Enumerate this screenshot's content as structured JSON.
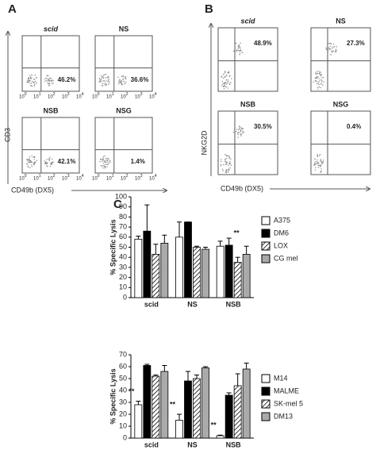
{
  "panel_labels": [
    "A",
    "B",
    "C"
  ],
  "flow_a": {
    "y_label": "CD3",
    "x_label": "CD49b (DX5)",
    "tick_base": "10",
    "tick_exponents": [
      "0",
      "1",
      "2",
      "3",
      "4"
    ],
    "plots": [
      {
        "title": "scid",
        "percent": "46.2%"
      },
      {
        "title": "NS",
        "percent": "36.6%"
      },
      {
        "title": "NSB",
        "percent": "42.1%"
      },
      {
        "title": "NSG",
        "percent": "1.4%"
      }
    ]
  },
  "flow_b": {
    "y_label": "NKG2D",
    "x_label": "CD49b (DX5)",
    "plots": [
      {
        "title": "scid",
        "percent": "48.9%"
      },
      {
        "title": "NS",
        "percent": "27.3%"
      },
      {
        "title": "NSB",
        "percent": "30.5%"
      },
      {
        "title": "NSG",
        "percent": "0.4%"
      }
    ]
  },
  "chart_data": [
    {
      "type": "bar",
      "y_label": "% Specific Lysis",
      "categories": [
        "scid",
        "NS",
        "NSB"
      ],
      "ylim": [
        0,
        100
      ],
      "yticks": [
        0,
        10,
        20,
        30,
        40,
        50,
        60,
        70,
        80,
        90,
        100
      ],
      "series": [
        {
          "name": "A375",
          "color": "#ffffff",
          "values": [
            58,
            60,
            51
          ],
          "errors": [
            3,
            15,
            5
          ]
        },
        {
          "name": "DM6",
          "color": "#000000",
          "values": [
            66,
            75,
            52
          ],
          "errors": [
            26,
            0,
            7
          ]
        },
        {
          "name": "LOX",
          "color": "#ffffff",
          "pattern": "hatch",
          "values": [
            43,
            50,
            35
          ],
          "errors": [
            10,
            1,
            5
          ]
        },
        {
          "name": "CG mel",
          "color": "#aaaaaa",
          "values": [
            54,
            48,
            43
          ],
          "errors": [
            8,
            2,
            8
          ]
        }
      ],
      "annotations": [
        "**"
      ]
    },
    {
      "type": "bar",
      "y_label": "% Specific Lysis",
      "categories": [
        "scid",
        "NS",
        "NSB"
      ],
      "ylim": [
        0,
        70
      ],
      "yticks": [
        0,
        10,
        20,
        30,
        40,
        50,
        60,
        70
      ],
      "series": [
        {
          "name": "M14",
          "color": "#ffffff",
          "values": [
            28,
            15,
            2
          ],
          "errors": [
            3,
            5,
            0.5
          ]
        },
        {
          "name": "MALME",
          "color": "#000000",
          "values": [
            61,
            48,
            36
          ],
          "errors": [
            1,
            8,
            2
          ]
        },
        {
          "name": "SK-mel 5",
          "color": "#ffffff",
          "pattern": "hatch",
          "values": [
            52,
            50,
            44
          ],
          "errors": [
            1,
            3,
            10
          ]
        },
        {
          "name": "DM13",
          "color": "#aaaaaa",
          "values": [
            56,
            59,
            58
          ],
          "errors": [
            5,
            1,
            5
          ]
        }
      ],
      "annotations": [
        "**",
        "**",
        "**"
      ]
    }
  ]
}
